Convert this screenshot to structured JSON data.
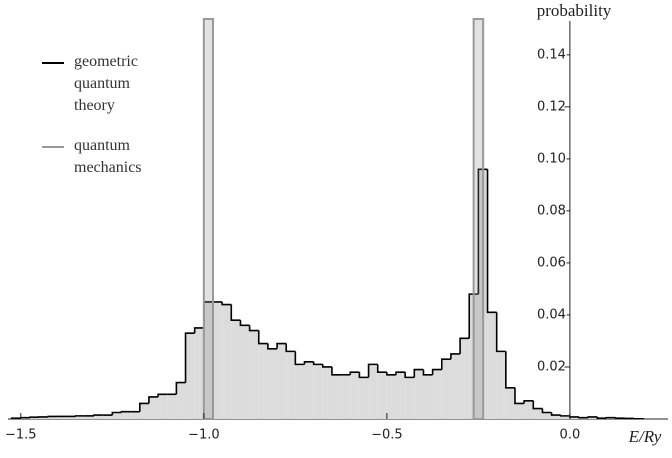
{
  "chart_data": {
    "type": "histogram",
    "x_label": "E/Ry",
    "y_label": "probability",
    "xlim": [
      -1.535,
      0.268
    ],
    "ylim": [
      0,
      0.153
    ],
    "xticks": [
      {
        "value": -1.5,
        "label": "−1.5"
      },
      {
        "value": -1.0,
        "label": "−1.0"
      },
      {
        "value": -0.5,
        "label": "−0.5"
      },
      {
        "value": 0,
        "label": "0.0"
      }
    ],
    "yticks": [
      0.02,
      0.04,
      0.06,
      0.08,
      {
        "value": 0.1,
        "label": "0.10"
      },
      0.12,
      0.14
    ],
    "series": [
      {
        "name": "geometric quantum theory",
        "color": "#000000",
        "fill": "#dcdcdc",
        "bins": [
          -1.525,
          -1.5,
          -1.475,
          -1.45,
          -1.425,
          -1.4,
          -1.375,
          -1.35,
          -1.325,
          -1.3,
          -1.275,
          -1.25,
          -1.225,
          -1.2,
          -1.175,
          -1.15,
          -1.125,
          -1.1,
          -1.075,
          -1.05,
          -1.025,
          -1.0,
          -0.975,
          -0.95,
          -0.925,
          -0.9,
          -0.875,
          -0.85,
          -0.825,
          -0.8,
          -0.775,
          -0.75,
          -0.725,
          -0.7,
          -0.675,
          -0.65,
          -0.625,
          -0.6,
          -0.575,
          -0.55,
          -0.525,
          -0.5,
          -0.475,
          -0.45,
          -0.425,
          -0.4,
          -0.375,
          -0.35,
          -0.325,
          -0.3,
          -0.275,
          -0.25,
          -0.225,
          -0.2,
          -0.175,
          -0.15,
          -0.125,
          -0.1,
          -0.075,
          -0.05,
          -0.025,
          0,
          0.025,
          0.05,
          0.075,
          0.1,
          0.125,
          0.15,
          0.175,
          0.2
        ],
        "values": [
          0.0003,
          0.0005,
          0.0007,
          0.0008,
          0.001,
          0.001,
          0.001,
          0.0012,
          0.0012,
          0.0015,
          0.0015,
          0.0025,
          0.0028,
          0.0028,
          0.006,
          0.0085,
          0.0095,
          0.0095,
          0.014,
          0.033,
          0.035,
          0.045,
          0.045,
          0.044,
          0.038,
          0.036,
          0.034,
          0.029,
          0.027,
          0.029,
          0.026,
          0.021,
          0.022,
          0.021,
          0.02,
          0.017,
          0.017,
          0.018,
          0.016,
          0.021,
          0.018,
          0.017,
          0.018,
          0.016,
          0.019,
          0.017,
          0.019,
          0.023,
          0.025,
          0.031,
          0.048,
          0.096,
          0.041,
          0.026,
          0.012,
          0.006,
          0.007,
          0.004,
          0.0025,
          0.0015,
          0.0012,
          0.0008,
          0.0005,
          0.0008,
          0.0003,
          0.0005,
          0.0003,
          0.0002,
          0.0001
        ]
      },
      {
        "name": "quantum mechanics",
        "color": "#999999",
        "spikes": [
          {
            "x0": -1.0,
            "x1": -0.975
          },
          {
            "x0": -0.263,
            "x1": -0.237
          }
        ]
      }
    ]
  }
}
